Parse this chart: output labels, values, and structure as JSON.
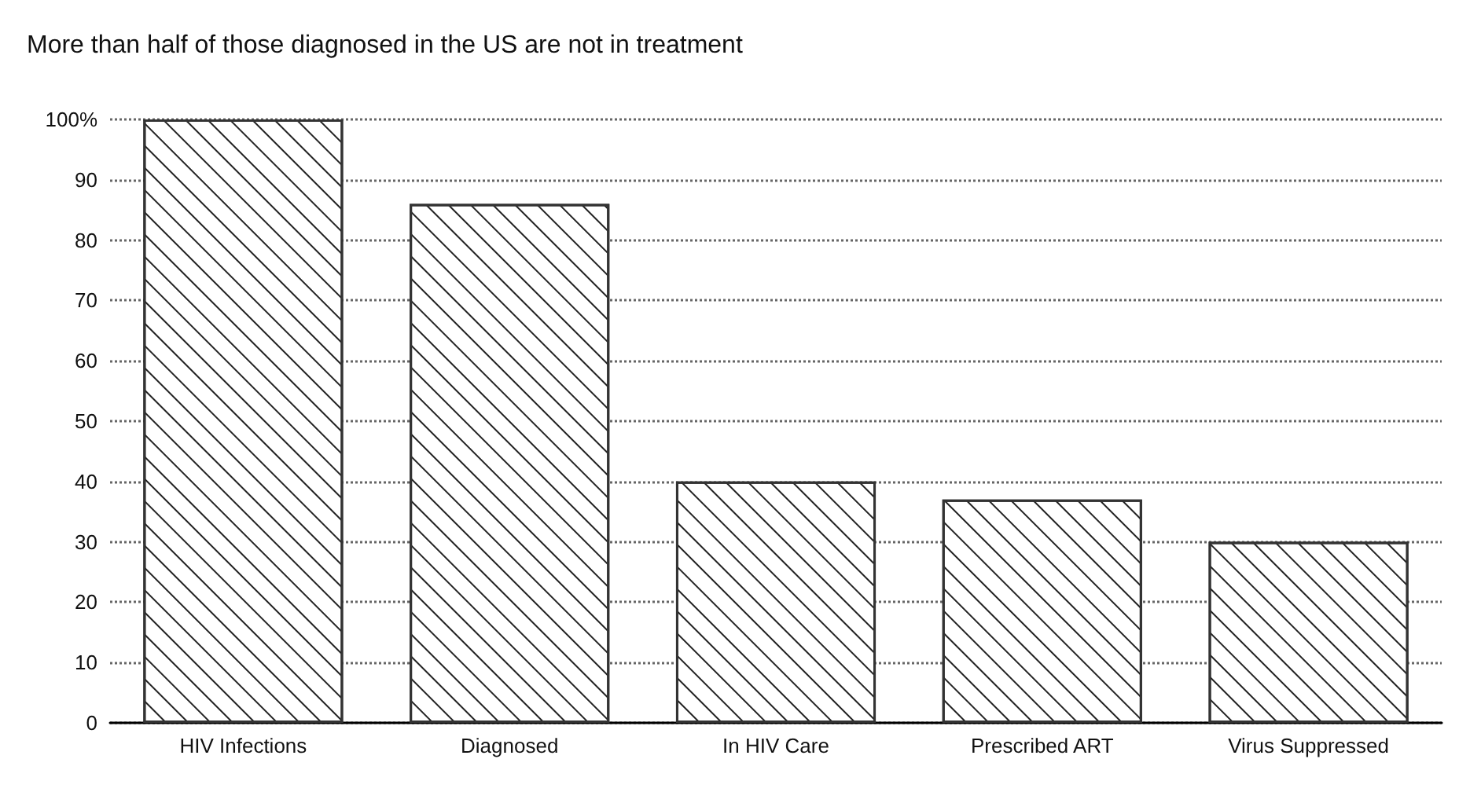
{
  "chart_data": {
    "type": "bar",
    "title": "More than half of those diagnosed in the US are not in treatment",
    "categories": [
      "HIV Infections",
      "Diagnosed",
      "In HIV Care",
      "Prescribed ART",
      "Virus Suppressed"
    ],
    "values": [
      100,
      86,
      40,
      37,
      30
    ],
    "color": "#ffffff",
    "ylim": [
      0,
      100
    ],
    "yticks": [
      0,
      10,
      20,
      30,
      40,
      50,
      60,
      70,
      80,
      90,
      {
        "value": 100,
        "label": "100%"
      }
    ],
    "grid": "y"
  }
}
